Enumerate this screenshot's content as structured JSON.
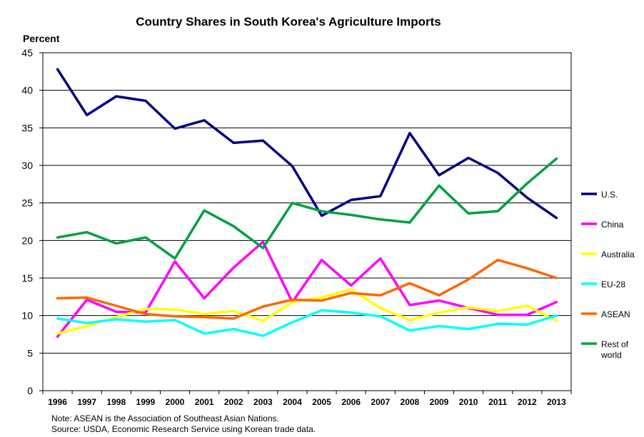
{
  "chart_data": {
    "type": "line",
    "title": "Country Shares in  South Korea's Agriculture Imports",
    "ylabel": "Percent",
    "xlabel": "",
    "ylim": [
      0,
      45
    ],
    "yticks": [
      0,
      5,
      10,
      15,
      20,
      25,
      30,
      35,
      40,
      45
    ],
    "grid": true,
    "legend_position": "right",
    "categories": [
      "1996",
      "1997",
      "1998",
      "1999",
      "2000",
      "2001",
      "2002",
      "2003",
      "2004",
      "2005",
      "2006",
      "2007",
      "2008",
      "2009",
      "2010",
      "2011",
      "2012",
      "2013"
    ],
    "series": [
      {
        "name": "U.S.",
        "color": "#000080",
        "values": [
          42.8,
          36.7,
          39.2,
          38.6,
          34.9,
          36.0,
          33.0,
          33.3,
          29.9,
          23.3,
          25.4,
          25.9,
          34.3,
          28.7,
          31.0,
          29.0,
          25.7,
          23.0
        ]
      },
      {
        "name": "China",
        "color": "#FF00FF",
        "values": [
          7.2,
          12.1,
          10.5,
          10.4,
          17.2,
          12.3,
          16.4,
          19.8,
          11.8,
          17.4,
          14.0,
          17.6,
          11.4,
          12.0,
          11.0,
          10.1,
          10.1,
          11.8
        ]
      },
      {
        "name": "Australia",
        "color": "#FFFF00",
        "values": [
          7.6,
          8.6,
          9.8,
          10.9,
          10.8,
          10.2,
          10.6,
          9.3,
          11.8,
          12.4,
          13.5,
          11.0,
          9.4,
          10.4,
          11.1,
          10.6,
          11.3,
          9.3
        ]
      },
      {
        "name": "EU-28",
        "color": "#00FFFF",
        "values": [
          9.6,
          9.0,
          9.5,
          9.2,
          9.4,
          7.6,
          8.2,
          7.3,
          9.1,
          10.7,
          10.4,
          9.9,
          8.0,
          8.6,
          8.2,
          8.9,
          8.8,
          10.0
        ]
      },
      {
        "name": "ASEAN",
        "color": "#FF6600",
        "values": [
          12.3,
          12.4,
          11.3,
          10.2,
          9.9,
          9.8,
          9.6,
          11.2,
          12.1,
          12.0,
          13.0,
          12.7,
          14.3,
          12.7,
          14.8,
          17.4,
          16.3,
          15.0
        ]
      },
      {
        "name": "Rest of world",
        "name_lines": [
          "Rest of",
          "world"
        ],
        "color": "#00A040",
        "values": [
          20.4,
          21.1,
          19.6,
          20.4,
          17.6,
          24.0,
          21.9,
          19.0,
          25.0,
          23.9,
          23.4,
          22.8,
          22.4,
          27.3,
          23.6,
          23.9,
          27.6,
          30.9
        ]
      }
    ],
    "notes": [
      "Note:  ASEAN is the Association of Southeast Asian Nations.",
      "Source: USDA, Economic Research Service using Korean trade data."
    ]
  }
}
